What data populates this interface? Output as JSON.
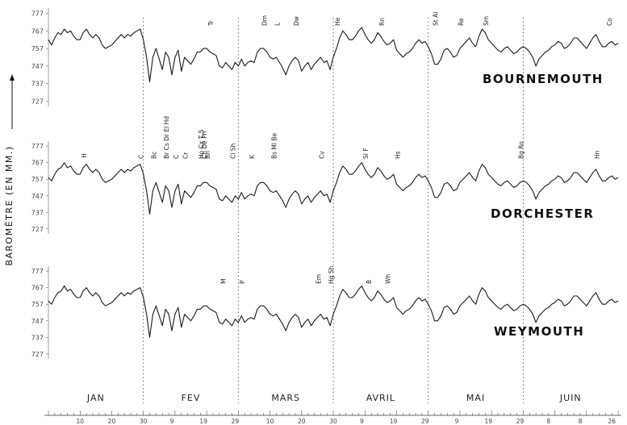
{
  "chart_data": {
    "type": "line",
    "ylabel": "BAROMÈTRE (EN MM.)",
    "yticks": [
      727,
      737,
      747,
      757,
      767,
      777
    ],
    "ylim": [
      724,
      780
    ],
    "x_days": 181,
    "months": [
      "JAN",
      "FEV",
      "MARS",
      "AVRIL",
      "MAI",
      "JUIN"
    ],
    "month_boundaries": [
      0,
      30,
      60,
      90,
      120,
      150,
      180
    ],
    "x_tick_labels": [
      {
        "day": 10,
        "label": "10"
      },
      {
        "day": 20,
        "label": "20"
      },
      {
        "day": 30,
        "label": "30"
      },
      {
        "day": 39,
        "label": "9"
      },
      {
        "day": 49,
        "label": "19"
      },
      {
        "day": 59,
        "label": "29"
      },
      {
        "day": 70,
        "label": "10"
      },
      {
        "day": 80,
        "label": "20"
      },
      {
        "day": 90,
        "label": "30"
      },
      {
        "day": 99,
        "label": "9"
      },
      {
        "day": 109,
        "label": "19"
      },
      {
        "day": 119,
        "label": "29"
      },
      {
        "day": 129,
        "label": "9"
      },
      {
        "day": 139,
        "label": "19"
      },
      {
        "day": 149,
        "label": "29"
      },
      {
        "day": 158,
        "label": "8"
      },
      {
        "day": 168,
        "label": "8"
      },
      {
        "day": 178,
        "label": "26"
      }
    ],
    "series": [
      {
        "name": "BOURNEMOUTH",
        "values": [
          762,
          759,
          763,
          766,
          765,
          768,
          766,
          767,
          764,
          762,
          762,
          766,
          768,
          765,
          763,
          765,
          763,
          759,
          757,
          758,
          759,
          761,
          763,
          765,
          763,
          765,
          764,
          766,
          767,
          768,
          762,
          752,
          738,
          752,
          757,
          751,
          745,
          755,
          752,
          742,
          752,
          756,
          744,
          752,
          750,
          748,
          751,
          755,
          755,
          757,
          757,
          755,
          754,
          753,
          747,
          746,
          749,
          747,
          745,
          749,
          747,
          751,
          747,
          749,
          750,
          749,
          755,
          757,
          757,
          755,
          752,
          751,
          752,
          749,
          746,
          742,
          747,
          750,
          752,
          750,
          744,
          747,
          749,
          745,
          748,
          750,
          752,
          749,
          750,
          745,
          752,
          757,
          763,
          767,
          765,
          762,
          762,
          764,
          767,
          769,
          765,
          762,
          760,
          762,
          766,
          764,
          761,
          759,
          760,
          762,
          756,
          754,
          752,
          754,
          755,
          757,
          760,
          762,
          760,
          761,
          758,
          754,
          748,
          748,
          751,
          756,
          757,
          755,
          752,
          753,
          757,
          759,
          761,
          763,
          760,
          758,
          764,
          768,
          766,
          762,
          760,
          758,
          756,
          755,
          757,
          758,
          756,
          754,
          755,
          757,
          758,
          757,
          755,
          752,
          747,
          751,
          753,
          755,
          756,
          758,
          759,
          761,
          760,
          757,
          758,
          760,
          763,
          763,
          761,
          759,
          757,
          760,
          763,
          765,
          761,
          758,
          758,
          760,
          761,
          759,
          760
        ],
        "markers": [
          {
            "day": 52,
            "label": "Tr"
          },
          {
            "day": 69,
            "label": "Dm"
          },
          {
            "day": 73,
            "label": "L"
          },
          {
            "day": 79,
            "label": "Dw"
          },
          {
            "day": 92,
            "label": "He"
          },
          {
            "day": 106,
            "label": "Rn"
          },
          {
            "day": 123,
            "label": "St Al"
          },
          {
            "day": 131,
            "label": "Re"
          },
          {
            "day": 139,
            "label": "Sm"
          },
          {
            "day": 178,
            "label": "Co"
          }
        ]
      },
      {
        "name": "DORCHESTER",
        "values": [
          758,
          756,
          760,
          763,
          764,
          767,
          764,
          765,
          762,
          760,
          760,
          764,
          766,
          763,
          761,
          763,
          761,
          757,
          755,
          756,
          757,
          759,
          761,
          763,
          761,
          763,
          762,
          764,
          765,
          766,
          760,
          750,
          736,
          750,
          755,
          749,
          743,
          753,
          750,
          740,
          750,
          754,
          742,
          750,
          748,
          746,
          749,
          753,
          753,
          755,
          755,
          753,
          752,
          751,
          745,
          744,
          747,
          745,
          743,
          747,
          745,
          749,
          745,
          747,
          748,
          747,
          753,
          755,
          755,
          753,
          750,
          749,
          750,
          747,
          744,
          740,
          745,
          748,
          750,
          748,
          742,
          745,
          747,
          743,
          746,
          748,
          750,
          747,
          748,
          743,
          750,
          755,
          761,
          765,
          763,
          760,
          760,
          762,
          765,
          767,
          763,
          760,
          758,
          760,
          764,
          762,
          759,
          757,
          758,
          760,
          754,
          752,
          750,
          752,
          753,
          755,
          758,
          760,
          758,
          759,
          756,
          752,
          746,
          746,
          749,
          754,
          755,
          753,
          750,
          751,
          755,
          757,
          759,
          761,
          758,
          756,
          762,
          766,
          764,
          760,
          758,
          756,
          754,
          753,
          755,
          756,
          754,
          752,
          753,
          755,
          756,
          755,
          753,
          750,
          745,
          749,
          751,
          753,
          754,
          756,
          757,
          759,
          758,
          755,
          756,
          758,
          761,
          761,
          759,
          757,
          755,
          758,
          761,
          763,
          759,
          756,
          756,
          758,
          759,
          757,
          758
        ],
        "markers": [
          {
            "day": 12,
            "label": "H"
          },
          {
            "day": 30,
            "label": "C"
          },
          {
            "day": 34,
            "label": "Bc"
          },
          {
            "day": 38,
            "label": "Br Cs Dr El Hd"
          },
          {
            "day": 41,
            "label": "C"
          },
          {
            "day": 44,
            "label": "Cr"
          },
          {
            "day": 49,
            "label": "Ho Cx T S"
          },
          {
            "day": 51,
            "label": "Bn"
          },
          {
            "day": 50,
            "label": "Ch De Ph"
          },
          {
            "day": 59,
            "label": "Cl Sh"
          },
          {
            "day": 65,
            "label": "K"
          },
          {
            "day": 72,
            "label": "Bs Ml Be"
          },
          {
            "day": 87,
            "label": "Cv"
          },
          {
            "day": 101,
            "label": "Sl F"
          },
          {
            "day": 111,
            "label": "Hs"
          },
          {
            "day": 150,
            "label": "Bg Ro"
          },
          {
            "day": 174,
            "label": "Hn"
          }
        ]
      },
      {
        "name": "WEYMOUTH",
        "values": [
          759,
          757,
          761,
          764,
          765,
          768,
          765,
          766,
          763,
          761,
          761,
          765,
          767,
          764,
          762,
          764,
          762,
          758,
          756,
          757,
          758,
          760,
          762,
          764,
          762,
          764,
          763,
          765,
          766,
          767,
          761,
          751,
          737,
          751,
          756,
          750,
          744,
          754,
          751,
          741,
          751,
          755,
          743,
          751,
          749,
          747,
          750,
          754,
          754,
          756,
          756,
          754,
          753,
          752,
          746,
          745,
          748,
          746,
          744,
          748,
          746,
          750,
          746,
          748,
          749,
          748,
          754,
          756,
          756,
          754,
          751,
          750,
          751,
          748,
          745,
          741,
          746,
          749,
          751,
          749,
          743,
          746,
          748,
          744,
          747,
          749,
          751,
          748,
          749,
          744,
          751,
          756,
          762,
          766,
          764,
          761,
          761,
          763,
          766,
          768,
          764,
          761,
          759,
          761,
          765,
          763,
          760,
          758,
          759,
          761,
          755,
          753,
          751,
          753,
          754,
          756,
          759,
          761,
          759,
          760,
          757,
          753,
          747,
          747,
          750,
          755,
          756,
          754,
          751,
          752,
          756,
          758,
          760,
          762,
          759,
          757,
          763,
          767,
          765,
          761,
          759,
          757,
          755,
          754,
          756,
          757,
          755,
          753,
          754,
          756,
          757,
          756,
          754,
          751,
          746,
          750,
          752,
          754,
          755,
          757,
          758,
          760,
          759,
          756,
          757,
          759,
          762,
          762,
          760,
          758,
          756,
          759,
          762,
          764,
          760,
          757,
          757,
          759,
          760,
          758,
          759
        ],
        "markers": [
          {
            "day": 56,
            "label": "M"
          },
          {
            "day": 62,
            "label": "P"
          },
          {
            "day": 86,
            "label": "Em"
          },
          {
            "day": 90,
            "label": "Hg Sh"
          },
          {
            "day": 102,
            "label": "B"
          },
          {
            "day": 108,
            "label": "Wh"
          }
        ]
      }
    ]
  }
}
